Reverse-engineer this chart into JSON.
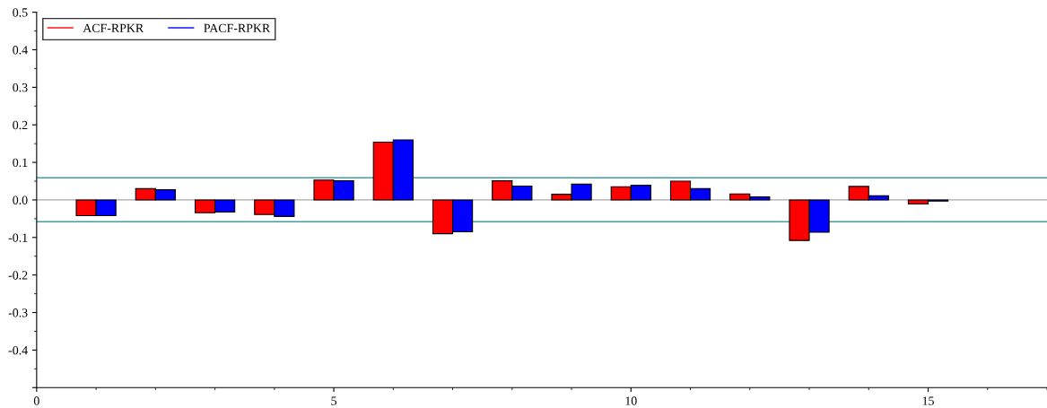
{
  "chart_data": {
    "type": "bar",
    "x": [
      1,
      2,
      3,
      4,
      5,
      6,
      7,
      8,
      9,
      10,
      11,
      12,
      13,
      14,
      15
    ],
    "series": [
      {
        "name": "ACF-RPKR",
        "color": "#ff0000",
        "values": [
          -0.042,
          0.03,
          -0.034,
          -0.039,
          0.053,
          0.154,
          -0.09,
          0.051,
          0.015,
          0.035,
          0.05,
          0.016,
          -0.108,
          0.036,
          -0.011
        ]
      },
      {
        "name": "PACF-RPKR",
        "color": "#0000ff",
        "values": [
          -0.042,
          0.027,
          -0.032,
          -0.044,
          0.051,
          0.16,
          -0.085,
          0.037,
          0.042,
          0.039,
          0.03,
          0.008,
          -0.086,
          0.011,
          -0.003
        ]
      }
    ],
    "xlim": [
      0,
      17
    ],
    "xticks": [
      0,
      5,
      10,
      15
    ],
    "ylim": [
      -0.5,
      0.5
    ],
    "yticks": [
      {
        "value": -0.5,
        "label": null
      },
      -0.4,
      -0.3,
      -0.2,
      -0.1,
      {
        "value": 0,
        "label": "0.0"
      },
      0.1,
      0.2,
      0.3,
      0.4,
      0.5
    ],
    "ref_lines": [
      {
        "axis": "y",
        "value": 0,
        "color": "#c0c0c0"
      },
      {
        "axis": "y",
        "value": 0.059,
        "color": "#40a0a0"
      },
      {
        "axis": "y",
        "value": -0.058,
        "color": "#40a0a0"
      }
    ],
    "grid": false,
    "legend": "top left"
  }
}
